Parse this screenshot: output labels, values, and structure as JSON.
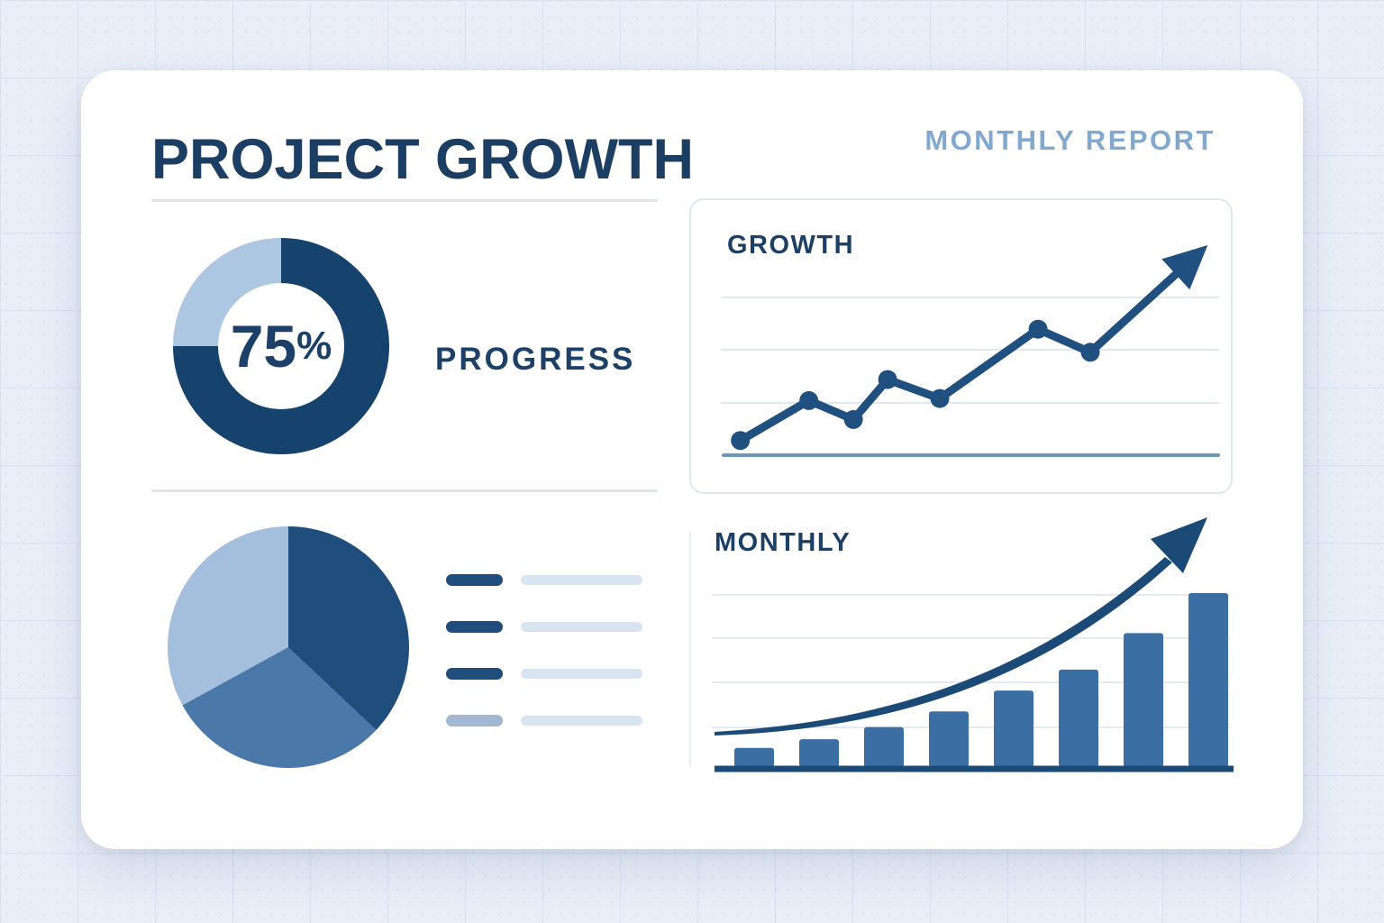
{
  "page": {
    "background_color": "#e9eef8",
    "card_color": "#ffffff"
  },
  "header": {
    "title": "PROJECT GROWTH",
    "subtitle": "MONTHLY REPORT",
    "title_color": "#1d3e63",
    "subtitle_color": "#82a8ce"
  },
  "chart_data": [
    {
      "id": "progress_donut",
      "type": "pie",
      "subtype": "donut",
      "title": "PROGRESS",
      "center_value": "75",
      "center_unit": "%",
      "values": [
        75,
        25
      ],
      "colors": [
        "#16426e",
        "#adc6e2"
      ],
      "start_angle_deg": 0,
      "clockwise": true
    },
    {
      "id": "growth_line",
      "type": "line",
      "title": "GROWTH",
      "x_pct": [
        9.4,
        22.0,
        30.2,
        36.5,
        46.1,
        64.2,
        73.8
      ],
      "values": [
        7,
        26,
        17,
        36,
        27,
        60,
        49
      ],
      "trend_arrow_end": {
        "x_pct": 95.4,
        "value": 100
      },
      "ylim": [
        0,
        100
      ],
      "gridlines": 3,
      "has_axis_line": true,
      "color": "#20507f",
      "axis_color": "#6e95ba",
      "note": "axes unlabeled; point values estimated on relative 0-100 scale"
    },
    {
      "id": "category_pie",
      "type": "pie",
      "values": [
        37,
        30,
        33
      ],
      "colors": [
        "#1f4e7c",
        "#4a78a8",
        "#a4bedd"
      ],
      "start_angle_deg": 0,
      "legend_rows": 4,
      "legend_swatches": [
        "#1f4e7c",
        "#1f4e7c",
        "#1f4e7c",
        "#a2b8d2"
      ],
      "legend_bar_color": "#d9e4f1",
      "note": "legend rows are decorative placeholder bars without text"
    },
    {
      "id": "monthly_bar",
      "type": "bar",
      "title": "MONTHLY",
      "values": [
        11,
        16,
        23,
        32,
        44,
        56,
        77,
        100
      ],
      "ylim": [
        0,
        100
      ],
      "bar_color": "#3b6fa3",
      "baseline_color": "#1c4a77",
      "gridlines": 4,
      "trend": "exponential rising arrow overlay",
      "note": "axes unlabeled; bar values estimated on relative 0-100 scale"
    }
  ]
}
